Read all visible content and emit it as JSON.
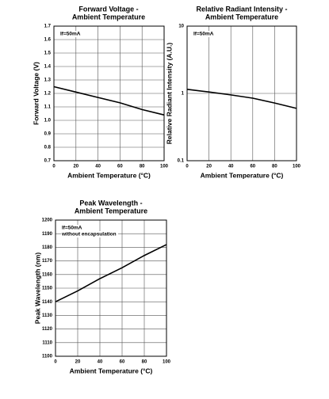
{
  "chart_data": [
    {
      "type": "line",
      "title": [
        "Forward Voltage -",
        "Ambient Temperature"
      ],
      "x_label": "Ambient Temperature (°C)",
      "y_label": "Forward Voltage (V)",
      "annotations": [
        "If=50mA"
      ],
      "x": [
        0,
        20,
        40,
        60,
        80,
        100
      ],
      "values": [
        1.25,
        1.21,
        1.17,
        1.13,
        1.08,
        1.04
      ],
      "color": "#000000",
      "xlim": [
        0,
        100
      ],
      "xticks": [
        0,
        20,
        40,
        60,
        80,
        100
      ],
      "ylim": [
        0.7,
        1.7
      ],
      "yticks": [
        0.7,
        0.8,
        0.9,
        {
          "value": 1,
          "label": "1.0"
        },
        1.1,
        1.2,
        1.3,
        1.4,
        1.5,
        1.6,
        1.7
      ],
      "grid": true,
      "log_y": false
    },
    {
      "type": "line",
      "title": [
        "Relative Radiant Intensity -",
        "Ambient Temperature"
      ],
      "x_label": "Ambient Temperature (°C)",
      "y_label": "Relative Radiant Intensity (A.U.)",
      "annotations": [
        "If=50mA"
      ],
      "x": [
        0,
        20,
        40,
        60,
        80,
        100
      ],
      "values": [
        1.15,
        1.05,
        0.95,
        0.85,
        0.72,
        0.6
      ],
      "color": "#000000",
      "xlim": [
        0,
        100
      ],
      "xticks": [
        0,
        20,
        40,
        60,
        80,
        100
      ],
      "ylim": [
        0.1,
        10
      ],
      "yticks": [
        0.1,
        1,
        10
      ],
      "grid": true,
      "log_y": true
    },
    {
      "type": "line",
      "title": [
        "Peak Wavelength -",
        "Ambient Temperature"
      ],
      "x_label": "Ambient Temperature (°C)",
      "y_label": "Peak Wavelength (nm)",
      "annotations": [
        "If=50mA",
        "without encapsulation"
      ],
      "x": [
        0,
        20,
        40,
        60,
        80,
        100
      ],
      "values": [
        1140,
        1148,
        1157,
        1165,
        1174,
        1182
      ],
      "color": "#000000",
      "xlim": [
        0,
        100
      ],
      "xticks": [
        0,
        20,
        40,
        60,
        80,
        100
      ],
      "ylim": [
        1100,
        1200
      ],
      "yticks": [
        1100,
        1110,
        1120,
        1130,
        1140,
        1150,
        1160,
        1170,
        1180,
        1190,
        1200
      ],
      "grid": true,
      "log_y": false
    }
  ]
}
